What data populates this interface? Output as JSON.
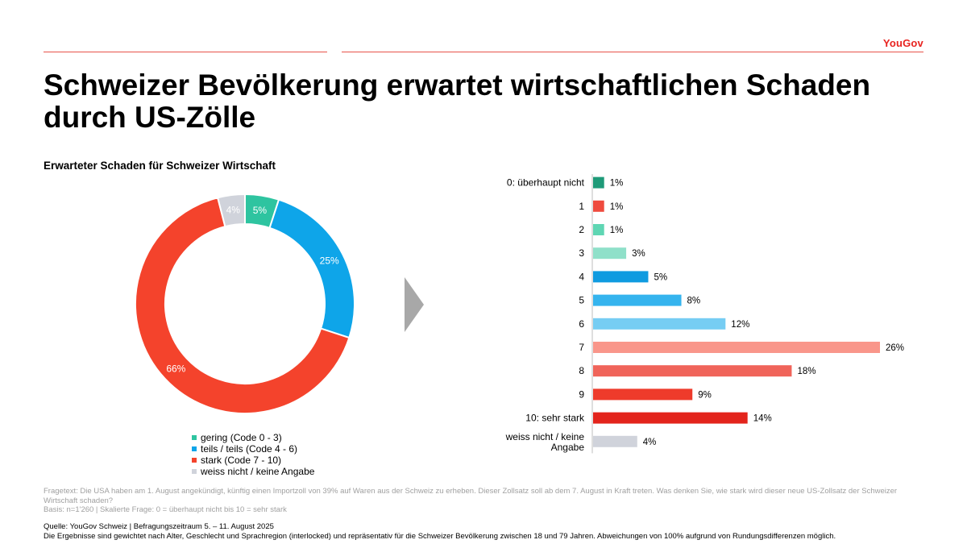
{
  "brand": "YouGov",
  "title": "Schweizer Bevölkerung erwartet wirtschaftlichen Schaden durch US-Zölle",
  "chart_title": "Erwarteter Schaden für Schweizer Wirtschaft",
  "colors": {
    "accent_line": "#e8534a",
    "gering": "#2ec4a0",
    "teils": "#0ea5e9",
    "stark": "#f4432c",
    "weiss_nicht": "#d0d3db",
    "arrow": "#a8a8a8"
  },
  "chart_data": [
    {
      "type": "pie",
      "variant": "donut",
      "categories": [
        "gering (Code 0 - 3)",
        "teils / teils (Code 4 - 6)",
        "stark (Code 7 - 10)",
        "weiss nicht / keine Angabe"
      ],
      "values": [
        5,
        25,
        66,
        4
      ],
      "data_labels": [
        "5%",
        "25%",
        "66%",
        "4%"
      ],
      "colors": [
        "#2ec4a0",
        "#0ea5e9",
        "#f4432c",
        "#d0d3db"
      ],
      "legend_position": "bottom"
    },
    {
      "type": "bar",
      "orientation": "horizontal",
      "categories": [
        "0: überhaupt nicht",
        "1",
        "2",
        "3",
        "4",
        "5",
        "6",
        "7",
        "8",
        "9",
        "10: sehr stark",
        "weiss nicht / keine Angabe"
      ],
      "values": [
        1,
        1,
        1,
        3,
        5,
        8,
        12,
        26,
        18,
        9,
        14,
        4
      ],
      "data_labels": [
        "1%",
        "1%",
        "1%",
        "3%",
        "5%",
        "8%",
        "12%",
        "26%",
        "18%",
        "9%",
        "14%",
        "4%"
      ],
      "colors": [
        "#1e9a78",
        "#ef4b3e",
        "#5fd6b3",
        "#8fe0c9",
        "#0f9be0",
        "#35b4ee",
        "#76cdf3",
        "#f9968a",
        "#f0645a",
        "#ee3b2b",
        "#e3241c",
        "#d0d3db"
      ],
      "xlim": [
        0,
        26
      ]
    }
  ],
  "notes": {
    "question": "Fragetext: Die USA haben am 1. August angekündigt, künftig einen Importzoll von 39% auf Waren aus der Schweiz zu erheben. Dieser Zollsatz soll ab dem 7. August in Kraft treten. Was denken Sie, wie stark wird dieser neue US-Zollsatz der Schweizer Wirtschaft schaden?",
    "basis": "Basis: n=1'260 | Skalierte Frage: 0 = überhaupt nicht bis 10 = sehr stark",
    "source": "Quelle: YouGov Schweiz | Befragungszeitraum 5. – 11. August 2025",
    "weighting": "Die Ergebnisse sind gewichtet nach Alter, Geschlecht und Sprachregion (interlocked) und repräsentativ für die Schweizer Bevölkerung zwischen 18 und 79 Jahren. Abweichungen von 100% aufgrund von Rundungsdifferenzen möglich."
  }
}
